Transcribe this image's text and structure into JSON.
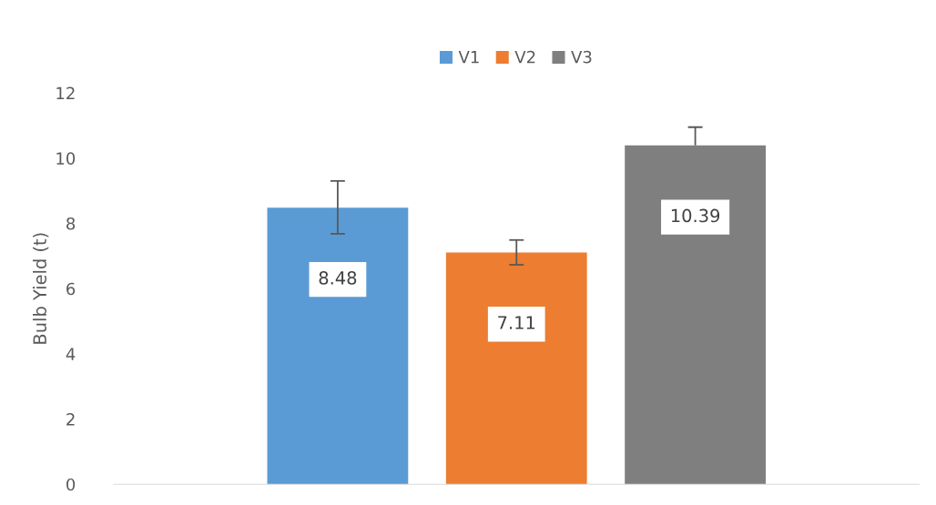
{
  "chart_data": {
    "type": "bar",
    "ylabel": "Bulb Yield (t)",
    "categories": [
      null
    ],
    "series": [
      {
        "name": "V1",
        "color": "#5b9bd5",
        "values": [
          8.48
        ],
        "errors": [
          [
            7.68,
            9.3
          ]
        ]
      },
      {
        "name": "V2",
        "color": "#ed7d31",
        "values": [
          7.11
        ],
        "errors": [
          [
            6.73,
            7.49
          ]
        ]
      },
      {
        "name": "V3",
        "color": "#7f7f7f",
        "values": [
          10.39
        ],
        "errors": [
          [
            10.39,
            10.95
          ]
        ]
      }
    ],
    "ylim": [
      0,
      12
    ],
    "yticks": [
      0,
      2,
      4,
      6,
      8,
      10,
      12
    ],
    "grid": false,
    "legend": "top",
    "data_labels": true
  }
}
